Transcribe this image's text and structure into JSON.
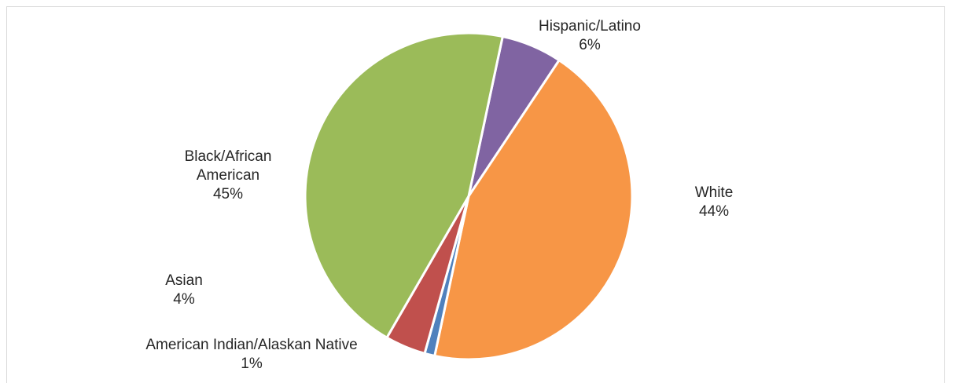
{
  "chart_data": {
    "type": "pie",
    "slices": [
      {
        "label": "Hispanic/Latino",
        "label_lines": [
          "Hispanic/Latino"
        ],
        "pct_label": "6%",
        "value": 6,
        "color": "#8064a2"
      },
      {
        "label": "White",
        "label_lines": [
          "White"
        ],
        "pct_label": "44%",
        "value": 44,
        "color": "#f79646"
      },
      {
        "label": "American Indian/Alaskan Native",
        "label_lines": [
          "American Indian/Alaskan Native"
        ],
        "pct_label": "1%",
        "value": 1,
        "color": "#4f81bd"
      },
      {
        "label": "Asian",
        "label_lines": [
          "Asian"
        ],
        "pct_label": "4%",
        "value": 4,
        "color": "#c0504d"
      },
      {
        "label": "Black/African American",
        "label_lines": [
          "Black/African",
          "American"
        ],
        "pct_label": "45%",
        "value": 45,
        "color": "#9bbb59"
      }
    ],
    "start_angle_deg": 12,
    "direction": "clockwise",
    "legend": "none"
  }
}
